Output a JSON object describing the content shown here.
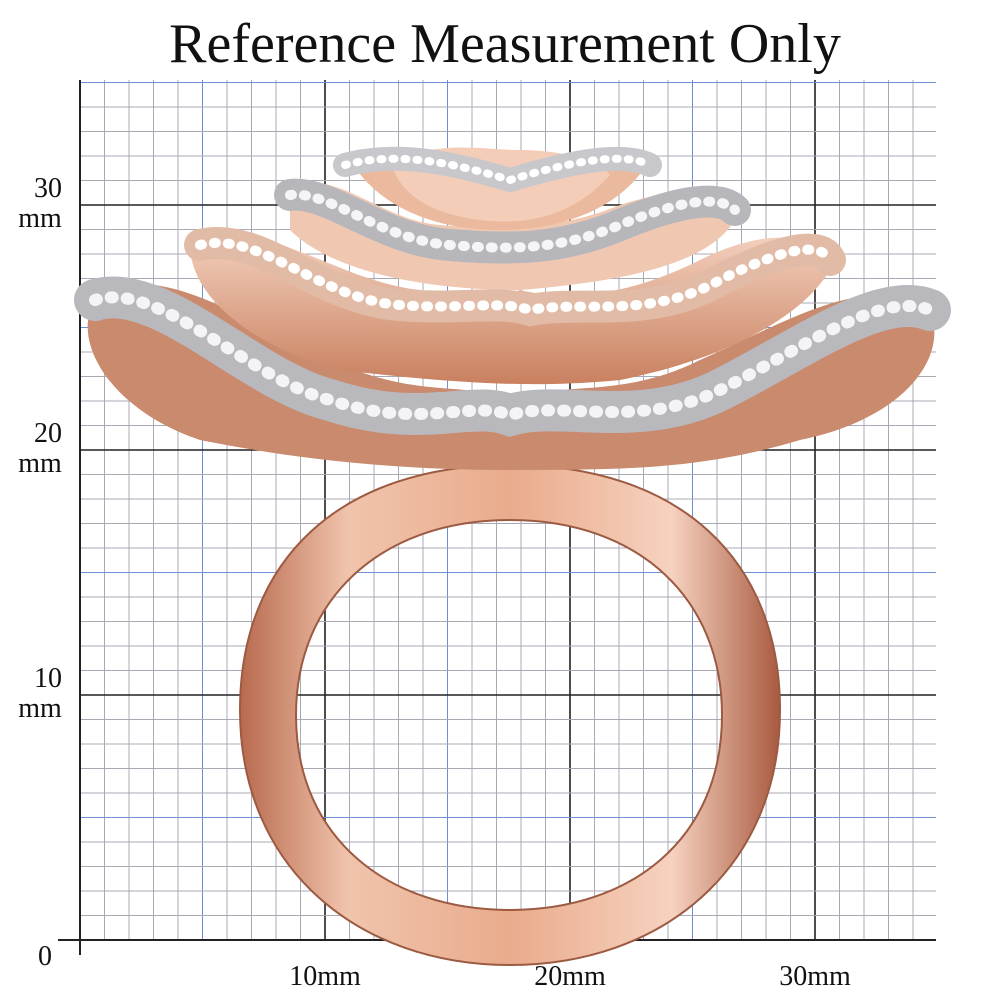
{
  "title": "Reference Measurement Only",
  "y_labels": [
    {
      "number": "30",
      "unit": "mm"
    },
    {
      "number": "20",
      "unit": "mm"
    },
    {
      "number": "10",
      "unit": "mm"
    },
    {
      "number": "0"
    }
  ],
  "x_labels": [
    "10mm",
    "20mm",
    "30mm"
  ]
}
